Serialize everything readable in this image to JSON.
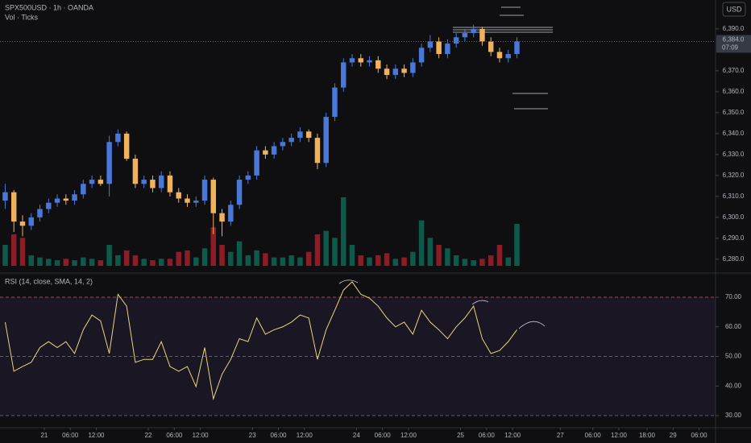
{
  "chart_data": [
    {
      "type": "candlestick",
      "title": "SPX500USD · 1h · OANDA",
      "subtitle": "Vol · Ticks",
      "currency_button": "USD",
      "last_price": 6384.0,
      "last_price_label": "6,384.0",
      "countdown": "07:09",
      "up_color": "#4a78d8",
      "down_color": "#f0b25c",
      "volume_up_color": "#0d5a4a",
      "volume_down_color": "#8c1c26",
      "x": [
        0,
        2,
        4,
        6,
        8,
        10,
        12,
        14,
        16,
        18,
        20,
        22,
        24,
        26,
        28,
        30,
        32,
        34,
        36,
        38,
        40,
        42,
        44,
        46,
        48,
        50,
        52,
        54,
        56,
        58,
        60,
        62,
        64,
        66,
        68,
        70,
        72,
        74,
        76,
        78,
        80,
        82,
        84,
        86,
        88,
        90,
        92,
        94,
        96,
        98,
        100,
        102,
        104,
        106,
        108,
        110,
        112,
        114,
        116,
        118
      ],
      "open": [
        6308,
        6312,
        6298,
        6296,
        6300,
        6304,
        6307,
        6309,
        6308,
        6311,
        6316,
        6318,
        6316,
        6336,
        6340,
        6328,
        6316,
        6318,
        6314,
        6320,
        6312,
        6309,
        6307,
        6308,
        6318,
        6302,
        6298,
        6306,
        6318,
        6320,
        6332,
        6330,
        6334,
        6336,
        6338,
        6341,
        6338,
        6326,
        6348,
        6362,
        6374,
        6376,
        6374,
        6375,
        6371,
        6368,
        6371,
        6369,
        6374,
        6381,
        6384,
        6378,
        6383,
        6386,
        6388,
        6390,
        6384,
        6379,
        6376,
        6378
      ],
      "high": [
        6316,
        6313,
        6301,
        6302,
        6306,
        6309,
        6311,
        6311,
        6313,
        6318,
        6320,
        6320,
        6339,
        6342,
        6341,
        6330,
        6320,
        6320,
        6322,
        6322,
        6314,
        6311,
        6310,
        6320,
        6319,
        6304,
        6308,
        6320,
        6322,
        6334,
        6334,
        6336,
        6338,
        6340,
        6343,
        6342,
        6340,
        6350,
        6364,
        6376,
        6378,
        6378,
        6377,
        6377,
        6373,
        6373,
        6373,
        6376,
        6383,
        6387,
        6386,
        6385,
        6388,
        6390,
        6392,
        6391,
        6386,
        6381,
        6380,
        6386
      ],
      "low": [
        6304,
        6293,
        6291,
        6294,
        6298,
        6302,
        6305,
        6306,
        6306,
        6309,
        6314,
        6315,
        6310,
        6334,
        6327,
        6314,
        6314,
        6312,
        6312,
        6310,
        6307,
        6305,
        6305,
        6306,
        6292,
        6291,
        6296,
        6304,
        6316,
        6318,
        6328,
        6328,
        6332,
        6334,
        6336,
        6336,
        6323,
        6324,
        6346,
        6360,
        6372,
        6372,
        6372,
        6369,
        6366,
        6366,
        6367,
        6367,
        6372,
        6379,
        6376,
        6376,
        6381,
        6384,
        6386,
        6382,
        6377,
        6374,
        6374,
        6376
      ],
      "close": [
        6312,
        6298,
        6296,
        6300,
        6304,
        6307,
        6309,
        6308,
        6311,
        6316,
        6318,
        6316,
        6336,
        6340,
        6328,
        6316,
        6318,
        6314,
        6320,
        6312,
        6309,
        6307,
        6308,
        6318,
        6302,
        6298,
        6306,
        6318,
        6320,
        6332,
        6330,
        6334,
        6336,
        6338,
        6341,
        6338,
        6326,
        6348,
        6362,
        6374,
        6376,
        6374,
        6375,
        6371,
        6368,
        6371,
        6369,
        6374,
        6381,
        6384,
        6378,
        6383,
        6386,
        6388,
        6390,
        6384,
        6379,
        6376,
        6378,
        6384
      ],
      "volume": [
        30,
        45,
        40,
        15,
        12,
        10,
        8,
        10,
        8,
        12,
        10,
        8,
        30,
        15,
        22,
        15,
        10,
        8,
        10,
        10,
        20,
        22,
        12,
        25,
        55,
        30,
        20,
        35,
        15,
        22,
        18,
        12,
        12,
        15,
        12,
        20,
        45,
        50,
        40,
        98,
        30,
        15,
        12,
        15,
        18,
        10,
        12,
        20,
        65,
        40,
        30,
        25,
        15,
        10,
        8,
        10,
        15,
        30,
        12,
        60
      ],
      "xlim": [
        -1.2,
        163.8
      ],
      "xticks": [
        {
          "value": 9,
          "label": "21"
        },
        {
          "value": 15,
          "label": "06:00"
        },
        {
          "value": 21,
          "label": "12:00"
        },
        {
          "value": 33,
          "label": "22"
        },
        {
          "value": 39,
          "label": "06:00"
        },
        {
          "value": 45,
          "label": "12:00"
        },
        {
          "value": 57,
          "label": "23"
        },
        {
          "value": 63,
          "label": "06:00"
        },
        {
          "value": 69,
          "label": "12:00"
        },
        {
          "value": 81,
          "label": "24"
        },
        {
          "value": 87,
          "label": "06:00"
        },
        {
          "value": 93,
          "label": "12:00"
        },
        {
          "value": 105,
          "label": "25"
        },
        {
          "value": 111,
          "label": "06:00"
        },
        {
          "value": 117,
          "label": "12:00"
        },
        {
          "value": 128,
          "label": "27"
        },
        {
          "value": 135.5,
          "label": "06:00"
        },
        {
          "value": 141.5,
          "label": "12:00"
        },
        {
          "value": 148,
          "label": "18:00"
        },
        {
          "value": 154,
          "label": "29"
        },
        {
          "value": 160,
          "label": "06:00"
        }
      ],
      "ylim": [
        6273.8,
        6403.8
      ],
      "yticks": [
        {
          "value": 6280,
          "label": "6,280.0"
        },
        {
          "value": 6290,
          "label": "6,290.0"
        },
        {
          "value": 6300,
          "label": "6,300.0"
        },
        {
          "value": 6310,
          "label": "6,310.0"
        },
        {
          "value": 6320,
          "label": "6,320.0"
        },
        {
          "value": 6330,
          "label": "6,330.0"
        },
        {
          "value": 6340,
          "label": "6,340.0"
        },
        {
          "value": 6350,
          "label": "6,350.0"
        },
        {
          "value": 6360,
          "label": "6,360.0"
        },
        {
          "value": 6370,
          "label": "6,370.0"
        },
        {
          "value": 6390,
          "label": "6,390.0"
        }
      ]
    },
    {
      "type": "line",
      "title": "RSI (14, close, SMA, 14, 2)",
      "color": "#e8d77a",
      "values": [
        61.6,
        45,
        46.6,
        48,
        53,
        55,
        53,
        55,
        51,
        59,
        64,
        62,
        51,
        71,
        67,
        48,
        49,
        49,
        55,
        46.6,
        45,
        46.6,
        39.8,
        53,
        35.7,
        44,
        49,
        56,
        55,
        63,
        57.5,
        59,
        60,
        61.6,
        64,
        63,
        49,
        59,
        65.6,
        72.4,
        75.2,
        71,
        69.7,
        67,
        63,
        60,
        61.6,
        57.5,
        65.6,
        61.6,
        59,
        56,
        60,
        63,
        67,
        56,
        51,
        52,
        55,
        59
      ],
      "ylim": [
        26.2,
        77.9
      ],
      "yticks": [
        {
          "value": 30,
          "label": "30.00"
        },
        {
          "value": 40,
          "label": "40.00"
        },
        {
          "value": 50,
          "label": "50.00"
        },
        {
          "value": 60,
          "label": "60.00"
        },
        {
          "value": 70,
          "label": "70.00"
        }
      ],
      "levels": [
        70,
        50,
        30
      ]
    }
  ]
}
